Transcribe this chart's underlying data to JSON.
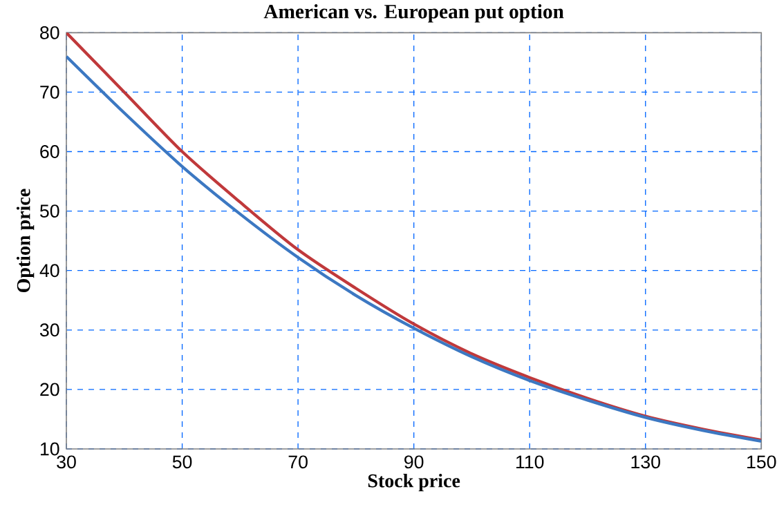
{
  "chart_data": {
    "type": "line",
    "title": "American vs. European put option",
    "xlabel": "Stock price",
    "ylabel": "Option price",
    "x": [
      30,
      40,
      50,
      60,
      70,
      80,
      90,
      100,
      110,
      120,
      130,
      140,
      150
    ],
    "series": [
      {
        "color": "#c0393b",
        "values": [
          80,
          70,
          60,
          51.5,
          43.5,
          37,
          31,
          26,
          22,
          18.5,
          15.5,
          13.3,
          11.5
        ]
      },
      {
        "color": "#3c78c2",
        "values": [
          76,
          66.5,
          57.5,
          49.5,
          42.2,
          35.8,
          30.3,
          25.5,
          21.5,
          18.2,
          15.3,
          13.1,
          11.3
        ]
      }
    ],
    "xlim": [
      30,
      150
    ],
    "ylim": [
      10,
      80
    ],
    "xticks": [
      30,
      50,
      70,
      90,
      110,
      130,
      150
    ],
    "yticks": [
      10,
      20,
      30,
      40,
      50,
      60,
      70,
      80
    ],
    "grid": true,
    "marker": "none",
    "line_style": "solid"
  }
}
